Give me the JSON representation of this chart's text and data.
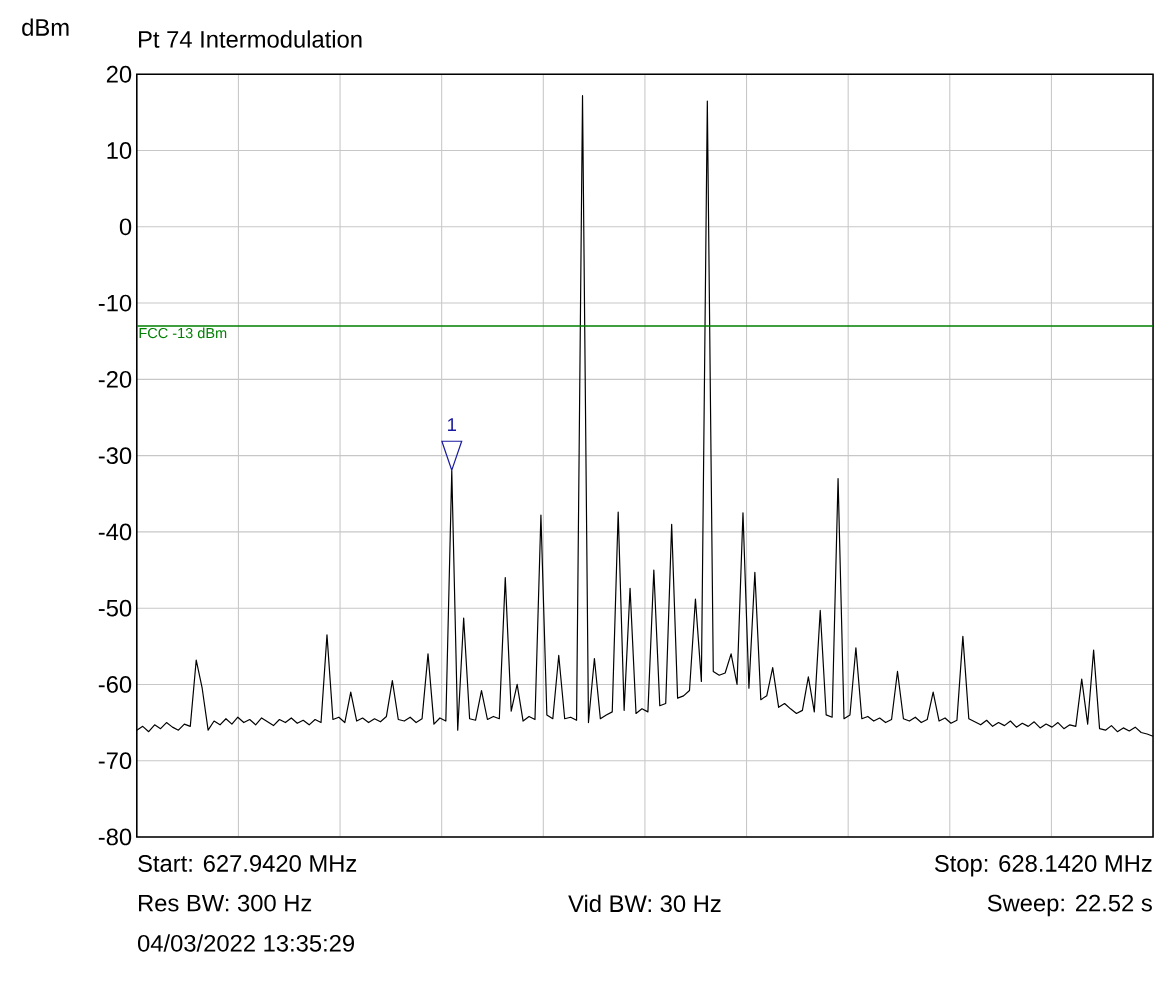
{
  "chart_data": {
    "type": "line",
    "title": "Pt 74 Intermodulation",
    "ylabel": "dBm",
    "categories": [
      null,
      null,
      null,
      null,
      null,
      null,
      null,
      null,
      null,
      null,
      null,
      null,
      null,
      null,
      null,
      null,
      null,
      null,
      null,
      null,
      null,
      null,
      null,
      null,
      null,
      null,
      null,
      null,
      null,
      null,
      null,
      null,
      null,
      null,
      null,
      null,
      null,
      null,
      null,
      null,
      null,
      null,
      null,
      null,
      null,
      null,
      null,
      null,
      null,
      null,
      null,
      null,
      null,
      null,
      null,
      null,
      null,
      null,
      null,
      null,
      null,
      null,
      null,
      null,
      null,
      null,
      null,
      null,
      null,
      null,
      null,
      null,
      null,
      null,
      null,
      null,
      null,
      null,
      null,
      null,
      null,
      null,
      null,
      null,
      null,
      null,
      null,
      null,
      null,
      null,
      null,
      null,
      null,
      null,
      null,
      null,
      null,
      null,
      null,
      null,
      null,
      null,
      null,
      null,
      null,
      null,
      null,
      null,
      null,
      null,
      null,
      null,
      null,
      null,
      null,
      null,
      null,
      null,
      null,
      null,
      null,
      null,
      null,
      null,
      null,
      null,
      null,
      null,
      null,
      null,
      null,
      null,
      null,
      null,
      null,
      null,
      null,
      null,
      null,
      null,
      null,
      null,
      null,
      null,
      null,
      null,
      null,
      null,
      null,
      null,
      null,
      null,
      null,
      null,
      null,
      null,
      null,
      null,
      null,
      null,
      null,
      null,
      null,
      null,
      null,
      null,
      null,
      null,
      null,
      null,
      null,
      null
    ],
    "ylim": [
      -80,
      20
    ],
    "yticks": [
      -80,
      -70,
      -60,
      -50,
      -40,
      -30,
      -20,
      -10,
      0,
      10,
      20
    ],
    "tick_labels": "y",
    "grid": true,
    "marker": "none",
    "line_style": "solid",
    "series": [
      {
        "color": "#000000",
        "values": [
          -66,
          -65.5,
          -66.2,
          -65.3,
          -65.8,
          -65,
          -65.6,
          -66,
          -65.2,
          -65.5,
          -56.8,
          -60.5,
          -66,
          -64.8,
          -65.3,
          -64.5,
          -65.2,
          -64.3,
          -65,
          -64.6,
          -65.3,
          -64.4,
          -64.9,
          -65.4,
          -64.6,
          -65,
          -64.4,
          -65.1,
          -64.7,
          -65.3,
          -64.6,
          -65,
          -53.5,
          -64.6,
          -64.3,
          -65,
          -61,
          -64.8,
          -64.4,
          -65,
          -64.5,
          -64.9,
          -64.2,
          -59.5,
          -64.6,
          -64.8,
          -64.3,
          -65,
          -64.5,
          -56,
          -65.2,
          -64.4,
          -64.8,
          -32,
          -66,
          -51.3,
          -64.5,
          -64.7,
          -60.8,
          -64.6,
          -64.2,
          -64.5,
          -46,
          -63.5,
          -60,
          -64.8,
          -64.2,
          -64.6,
          -37.8,
          -64,
          -64.5,
          -56.2,
          -64.5,
          -64.3,
          -64.7,
          17.2,
          -65,
          -56.6,
          -64.5,
          -64,
          -63.6,
          -37.4,
          -63.4,
          -47.4,
          -63.8,
          -63.2,
          -63.6,
          -45,
          -62.8,
          -62.5,
          -39,
          -61.8,
          -61.5,
          -60.8,
          -48.8,
          -59.6,
          16.5,
          -58.3,
          -58.8,
          -58.5,
          -56,
          -60,
          -37.5,
          -60.5,
          -45.3,
          -62,
          -61.5,
          -57.8,
          -63,
          -62.5,
          -63.2,
          -63.8,
          -63.4,
          -59,
          -63.6,
          -50.3,
          -64,
          -64.3,
          -33,
          -64.5,
          -64,
          -55.2,
          -64.5,
          -64.2,
          -64.8,
          -64.4,
          -65,
          -64.6,
          -58.3,
          -64.5,
          -64.8,
          -64.3,
          -65,
          -64.6,
          -61,
          -64.8,
          -64.4,
          -65.1,
          -64.7,
          -53.7,
          -64.5,
          -64.9,
          -65.3,
          -64.7,
          -65.5,
          -65,
          -65.4,
          -64.8,
          -65.6,
          -65.1,
          -65.5,
          -64.9,
          -65.7,
          -65.2,
          -65.6,
          -65,
          -65.8,
          -65.3,
          -65.5,
          -59.3,
          -65.2,
          -55.5,
          -65.8,
          -66,
          -65.4,
          -66.2,
          -65.7,
          -66.1,
          -65.6,
          -66.3,
          -66.5,
          -66.8
        ]
      }
    ],
    "ref_lines": [
      {
        "axis": "y",
        "value": -13,
        "label": "FCC -13 dBm",
        "color": "#008000"
      }
    ],
    "annotations": [
      {
        "text": "1",
        "y": -32
      },
      "Start: 627.9420 MHz",
      "Stop: 628.1420 MHz",
      "Res BW: 300 Hz",
      "Vid BW: 30 Hz",
      "Sweep: 22.52 s",
      "04/03/2022 13:35:29"
    ]
  }
}
